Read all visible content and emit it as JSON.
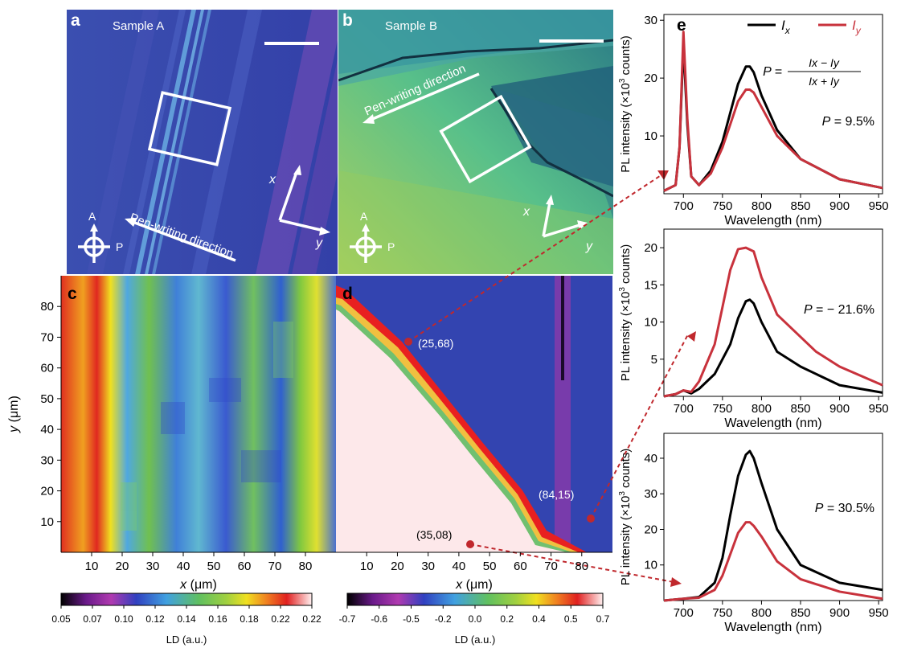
{
  "panels": {
    "a": {
      "letter": "a",
      "sample": "Sample A",
      "arrow_label": "Pen-writing direction",
      "axis_x": "x",
      "axis_y": "y",
      "analyzer": "A",
      "polarizer": "P"
    },
    "b": {
      "letter": "b",
      "sample": "Sample B",
      "arrow_label": "Pen-writing direction",
      "axis_x": "x",
      "axis_y": "y",
      "analyzer": "A",
      "polarizer": "P"
    },
    "c": {
      "letter": "c"
    },
    "d": {
      "letter": "d",
      "points": [
        {
          "label": "(25,68)",
          "x": 25,
          "y": 68
        },
        {
          "label": "(84,15)",
          "x": 84,
          "y": 15
        },
        {
          "label": "(35,08)",
          "x": 35,
          "y": 8
        }
      ]
    },
    "e": {
      "letter": "e"
    }
  },
  "colors": {
    "black_series": "#000000",
    "red_series": "#c8323c",
    "marker": "#c0282d"
  },
  "chart_data": [
    {
      "type": "heatmap",
      "id": "c",
      "xlabel": "x (μm)",
      "ylabel": "y (μm)",
      "xticks": [
        10,
        20,
        30,
        40,
        50,
        60,
        70,
        80
      ],
      "yticks": [
        10,
        20,
        30,
        40,
        50,
        60,
        70,
        80
      ],
      "xlim": [
        0,
        90
      ],
      "ylim": [
        0,
        90
      ],
      "colorbar": {
        "label": "LD (a.u.)",
        "ticks": [
          "0.05",
          "0.07",
          "0.10",
          "0.12",
          "0.14",
          "0.16",
          "0.18",
          "0.22",
          "0.22"
        ]
      }
    },
    {
      "type": "heatmap",
      "id": "d",
      "xlabel": "x (μm)",
      "xticks": [
        10,
        20,
        30,
        40,
        50,
        60,
        70,
        80
      ],
      "xlim": [
        0,
        90
      ],
      "ylim": [
        0,
        90
      ],
      "colorbar": {
        "label": "LD (a.u.)",
        "ticks": [
          "-0.7",
          "-0.6",
          "-0.5",
          "-0.2",
          "0.0",
          "0.2",
          "0.4",
          "0.5",
          "0.7"
        ]
      }
    },
    {
      "type": "line",
      "id": "e1",
      "xlabel": "Wavelength (nm)",
      "ylabel": "PL intensity (×10³ counts)",
      "xticks": [
        700,
        750,
        800,
        850,
        900,
        950
      ],
      "yticks": [
        10,
        20,
        30
      ],
      "xlim": [
        675,
        955
      ],
      "ylim": [
        0,
        31
      ],
      "legend": [
        "Ix",
        "Iy"
      ],
      "legend_position": "top-right",
      "formula": {
        "lhs": "P =",
        "num": "Ix − Iy",
        "den": "Ix + Iy"
      },
      "annotation": "P = 9.5%",
      "series": [
        {
          "name": "Ix",
          "x": [
            675,
            690,
            695,
            700,
            705,
            710,
            720,
            735,
            750,
            760,
            770,
            780,
            785,
            790,
            800,
            820,
            850,
            900,
            955
          ],
          "y": [
            0.5,
            1.5,
            8,
            26,
            12,
            3,
            1.5,
            4,
            9,
            14,
            19,
            22,
            22,
            21,
            17,
            11,
            6,
            2.5,
            1
          ]
        },
        {
          "name": "Iy",
          "x": [
            675,
            690,
            695,
            700,
            705,
            710,
            720,
            735,
            750,
            760,
            770,
            780,
            785,
            790,
            800,
            820,
            850,
            900,
            955
          ],
          "y": [
            0.5,
            1.5,
            8,
            28,
            13,
            3,
            1.5,
            3.5,
            8,
            12,
            16,
            18,
            18,
            17.5,
            15,
            10,
            6,
            2.5,
            1
          ]
        }
      ]
    },
    {
      "type": "line",
      "id": "e2",
      "xlabel": "Wavelength (nm)",
      "ylabel": "PL intensity (×10³ counts)",
      "xticks": [
        700,
        750,
        800,
        850,
        900,
        950
      ],
      "yticks": [
        5,
        10,
        15,
        20
      ],
      "xlim": [
        675,
        955
      ],
      "ylim": [
        0,
        22.5
      ],
      "annotation": "P = − 21.6%",
      "series": [
        {
          "name": "Ix",
          "x": [
            675,
            690,
            700,
            705,
            710,
            720,
            740,
            760,
            770,
            780,
            785,
            790,
            800,
            820,
            850,
            900,
            955
          ],
          "y": [
            0,
            0.3,
            0.8,
            0.6,
            0.4,
            1,
            3,
            7,
            10.5,
            12.8,
            13,
            12.5,
            10,
            6,
            4,
            1.5,
            0.5
          ]
        },
        {
          "name": "Iy",
          "x": [
            675,
            690,
            700,
            705,
            710,
            720,
            740,
            750,
            760,
            770,
            780,
            790,
            800,
            820,
            840,
            850,
            870,
            900,
            955
          ],
          "y": [
            0,
            0.3,
            0.8,
            0.7,
            0.6,
            2,
            7,
            12,
            17,
            19.8,
            20,
            19.5,
            16,
            11,
            9,
            8,
            6,
            4,
            1.5
          ]
        }
      ]
    },
    {
      "type": "line",
      "id": "e3",
      "xlabel": "Wavelength (nm)",
      "ylabel": "PL intensity (×10³ counts)",
      "xticks": [
        700,
        750,
        800,
        850,
        900,
        950
      ],
      "yticks": [
        10,
        20,
        30,
        40
      ],
      "xlim": [
        675,
        955
      ],
      "ylim": [
        0,
        47
      ],
      "annotation": "P = 30.5%",
      "series": [
        {
          "name": "Ix",
          "x": [
            675,
            700,
            720,
            740,
            750,
            760,
            770,
            780,
            785,
            790,
            800,
            820,
            850,
            900,
            955
          ],
          "y": [
            0,
            0.5,
            1,
            5,
            12,
            24,
            35,
            41,
            42,
            40,
            33,
            20,
            10,
            5,
            3
          ]
        },
        {
          "name": "Iy",
          "x": [
            675,
            700,
            720,
            740,
            750,
            760,
            770,
            780,
            785,
            790,
            800,
            820,
            850,
            900,
            955
          ],
          "y": [
            0,
            0.5,
            0.8,
            3,
            7,
            13,
            19,
            22,
            22,
            21,
            18,
            11,
            6,
            2.5,
            0.5
          ]
        }
      ]
    }
  ]
}
